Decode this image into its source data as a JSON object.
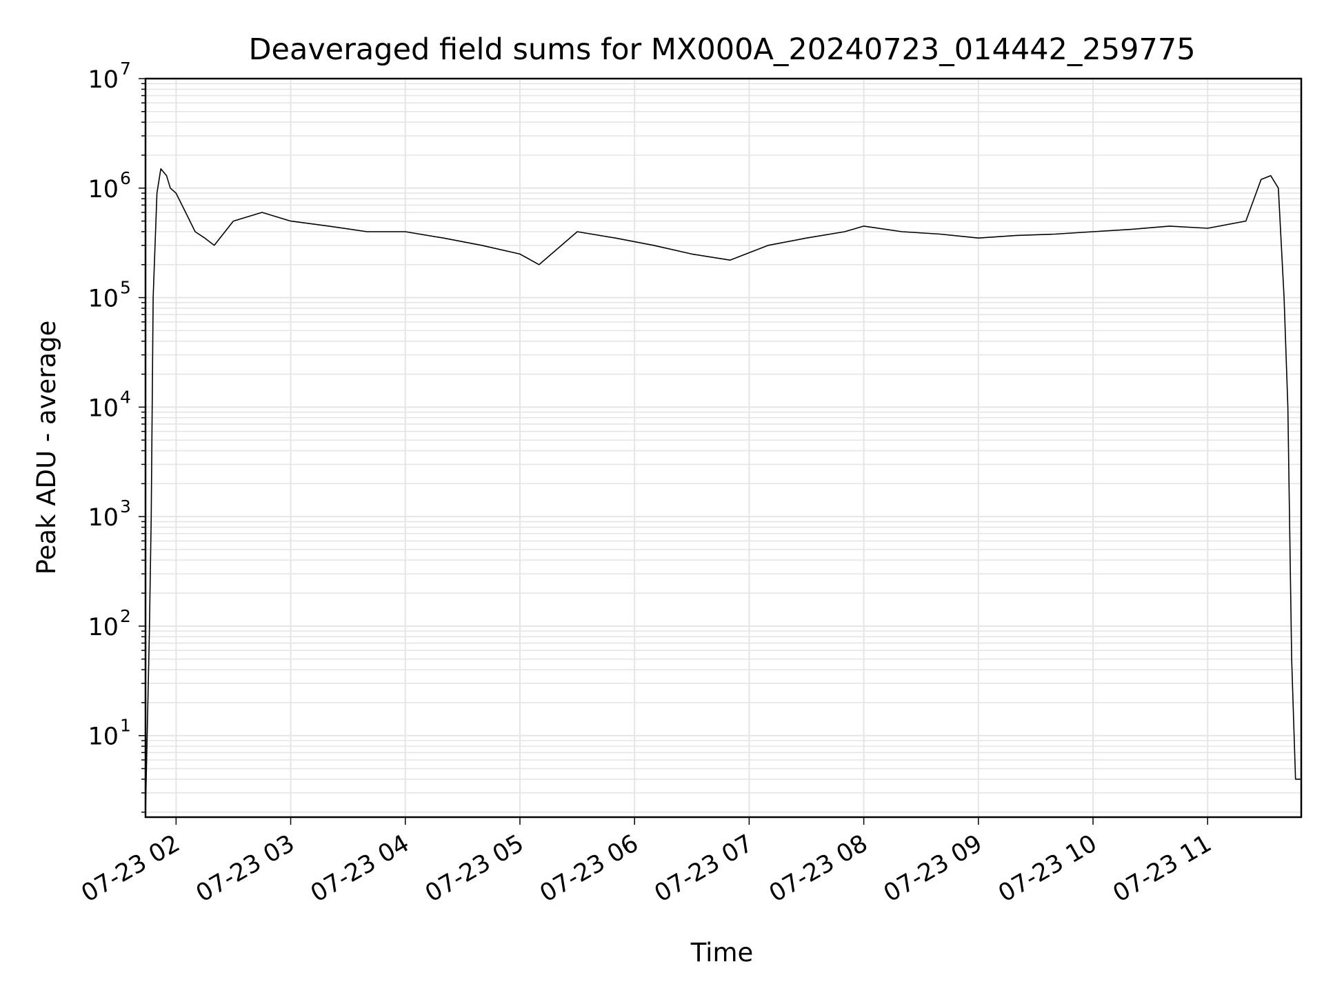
{
  "chart_data": {
    "type": "line",
    "title": "Deaveraged field sums for MX000A_20240723_014442_259775",
    "xlabel": "Time",
    "ylabel": "Peak ADU - average",
    "yscale": "log",
    "ylim": [
      1.8,
      10000000
    ],
    "xlim": [
      "2024-07-23 01:44",
      "2024-07-23 11:49"
    ],
    "grid": true,
    "line_color": "#000000",
    "grid_color": "#e5e5e5",
    "y_ticks": [
      {
        "base": "10",
        "exp": "1"
      },
      {
        "base": "10",
        "exp": "2"
      },
      {
        "base": "10",
        "exp": "3"
      },
      {
        "base": "10",
        "exp": "4"
      },
      {
        "base": "10",
        "exp": "5"
      },
      {
        "base": "10",
        "exp": "6"
      },
      {
        "base": "10",
        "exp": "7"
      }
    ],
    "x_ticks": [
      "07-23 02",
      "07-23 03",
      "07-23 04",
      "07-23 05",
      "07-23 06",
      "07-23 07",
      "07-23 08",
      "07-23 09",
      "07-23 10",
      "07-23 11"
    ],
    "series": [
      {
        "x": [
          "2024-07-23 01:44",
          "2024-07-23 01:46",
          "2024-07-23 01:47",
          "2024-07-23 01:48",
          "2024-07-23 01:50",
          "2024-07-23 01:52",
          "2024-07-23 01:55",
          "2024-07-23 01:57",
          "2024-07-23 02:00",
          "2024-07-23 02:05",
          "2024-07-23 02:10",
          "2024-07-23 02:15",
          "2024-07-23 02:20",
          "2024-07-23 02:30",
          "2024-07-23 02:45",
          "2024-07-23 03:00",
          "2024-07-23 03:20",
          "2024-07-23 03:40",
          "2024-07-23 04:00",
          "2024-07-23 04:20",
          "2024-07-23 04:40",
          "2024-07-23 05:00",
          "2024-07-23 05:10",
          "2024-07-23 05:30",
          "2024-07-23 05:50",
          "2024-07-23 06:10",
          "2024-07-23 06:30",
          "2024-07-23 06:50",
          "2024-07-23 07:10",
          "2024-07-23 07:30",
          "2024-07-23 07:50",
          "2024-07-23 08:00",
          "2024-07-23 08:20",
          "2024-07-23 08:40",
          "2024-07-23 09:00",
          "2024-07-23 09:20",
          "2024-07-23 09:40",
          "2024-07-23 10:00",
          "2024-07-23 10:20",
          "2024-07-23 10:40",
          "2024-07-23 11:00",
          "2024-07-23 11:20",
          "2024-07-23 11:28",
          "2024-07-23 11:33",
          "2024-07-23 11:37",
          "2024-07-23 11:40",
          "2024-07-23 11:42",
          "2024-07-23 11:44",
          "2024-07-23 11:46",
          "2024-07-23 11:49"
        ],
        "y": [
          2,
          80,
          1000,
          100000,
          900000,
          1500000,
          1300000,
          1000000,
          900000,
          600000,
          400000,
          350000,
          300000,
          500000,
          600000,
          500000,
          450000,
          400000,
          400000,
          350000,
          300000,
          250000,
          200000,
          400000,
          350000,
          300000,
          250000,
          220000,
          300000,
          350000,
          400000,
          450000,
          400000,
          380000,
          350000,
          370000,
          380000,
          400000,
          420000,
          450000,
          430000,
          500000,
          1200000,
          1300000,
          1000000,
          100000,
          10000,
          50,
          4,
          4
        ]
      }
    ]
  }
}
